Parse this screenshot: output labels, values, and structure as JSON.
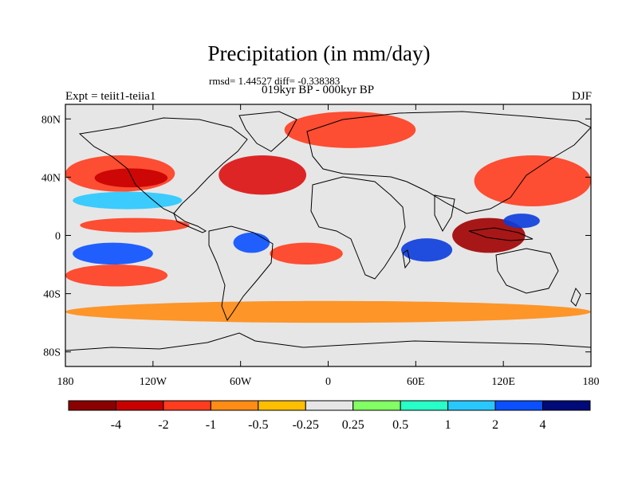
{
  "title": "Precipitation (in mm/day)",
  "stats_line": "rmsd= 1.44527 diff= -0.338383",
  "period_line": "019kyr BP - 000kyr BP",
  "experiment_label": "Expt = teiit1-teiia1",
  "season_label": "DJF",
  "map": {
    "projection": "cylindrical-equidistant",
    "lon_range": [
      -180,
      180
    ],
    "lat_range": [
      -90,
      90
    ],
    "lat_ticks": [
      {
        "value": 80,
        "label": "80N"
      },
      {
        "value": 40,
        "label": "40N"
      },
      {
        "value": 0,
        "label": "0"
      },
      {
        "value": -40,
        "label": "40S"
      },
      {
        "value": -80,
        "label": "80S"
      }
    ],
    "lon_ticks": [
      {
        "value": -180,
        "label": "180"
      },
      {
        "value": -120,
        "label": "120W"
      },
      {
        "value": -60,
        "label": "60W"
      },
      {
        "value": 0,
        "label": "0"
      },
      {
        "value": 60,
        "label": "60E"
      },
      {
        "value": 120,
        "label": "120E"
      },
      {
        "value": 180,
        "label": "180"
      }
    ],
    "background_color": "#e6e6e6",
    "coastline_color": "#000000",
    "anomaly_regions": [
      {
        "name": "north-pacific-drying",
        "lon": [
          -180,
          -105
        ],
        "lat": [
          30,
          55
        ],
        "color": "#ff3c1e"
      },
      {
        "name": "north-pacific-core",
        "lon": [
          -160,
          -110
        ],
        "lat": [
          33,
          46
        ],
        "color": "#c80000"
      },
      {
        "name": "arctic-atlantic-drying",
        "lon": [
          -30,
          60
        ],
        "lat": [
          60,
          85
        ],
        "color": "#ff3c1e"
      },
      {
        "name": "north-atlantic-core",
        "lon": [
          -75,
          -15
        ],
        "lat": [
          28,
          55
        ],
        "color": "#dd1010"
      },
      {
        "name": "pacific-wetting-north",
        "lon": [
          -175,
          -100
        ],
        "lat": [
          18,
          30
        ],
        "color": "#28c8ff"
      },
      {
        "name": "equatorial-pacific-drying",
        "lon": [
          -170,
          -95
        ],
        "lat": [
          2,
          12
        ],
        "color": "#ff3c1e"
      },
      {
        "name": "south-pacific-wetting",
        "lon": [
          -175,
          -120
        ],
        "lat": [
          -20,
          -5
        ],
        "color": "#0a50ff"
      },
      {
        "name": "south-pacific-drying",
        "lon": [
          -180,
          -110
        ],
        "lat": [
          -35,
          -20
        ],
        "color": "#ff3c1e"
      },
      {
        "name": "amazon-wetting",
        "lon": [
          -65,
          -40
        ],
        "lat": [
          -12,
          2
        ],
        "color": "#0a50ff"
      },
      {
        "name": "south-atlantic-drying",
        "lon": [
          -40,
          10
        ],
        "lat": [
          -20,
          -5
        ],
        "color": "#ff3c1e"
      },
      {
        "name": "indian-ocean-wetting",
        "lon": [
          50,
          85
        ],
        "lat": [
          -18,
          -2
        ],
        "color": "#0a3cdc"
      },
      {
        "name": "maritime-continent-drying",
        "lon": [
          85,
          135
        ],
        "lat": [
          -12,
          12
        ],
        "color": "#a00000"
      },
      {
        "name": "west-pacific-wetting",
        "lon": [
          120,
          145
        ],
        "lat": [
          5,
          15
        ],
        "color": "#0a3cdc"
      },
      {
        "name": "southern-ocean-drying",
        "lon": [
          -180,
          180
        ],
        "lat": [
          -60,
          -45
        ],
        "color": "#ff8c14"
      },
      {
        "name": "asia-pacific-drying",
        "lon": [
          100,
          180
        ],
        "lat": [
          20,
          55
        ],
        "color": "#ff3c1e"
      }
    ]
  },
  "colorbar": {
    "colors": [
      "#8b0000",
      "#c80000",
      "#ff3c1e",
      "#ff8c14",
      "#ffbe00",
      "#e6e6e6",
      "#82ff64",
      "#28ffc8",
      "#28c8ff",
      "#0a50ff",
      "#000a78"
    ],
    "labels": [
      "-4",
      "-2",
      "-1",
      "-0.5",
      "-0.25",
      "0.25",
      "0.5",
      "1",
      "2",
      "4"
    ]
  }
}
